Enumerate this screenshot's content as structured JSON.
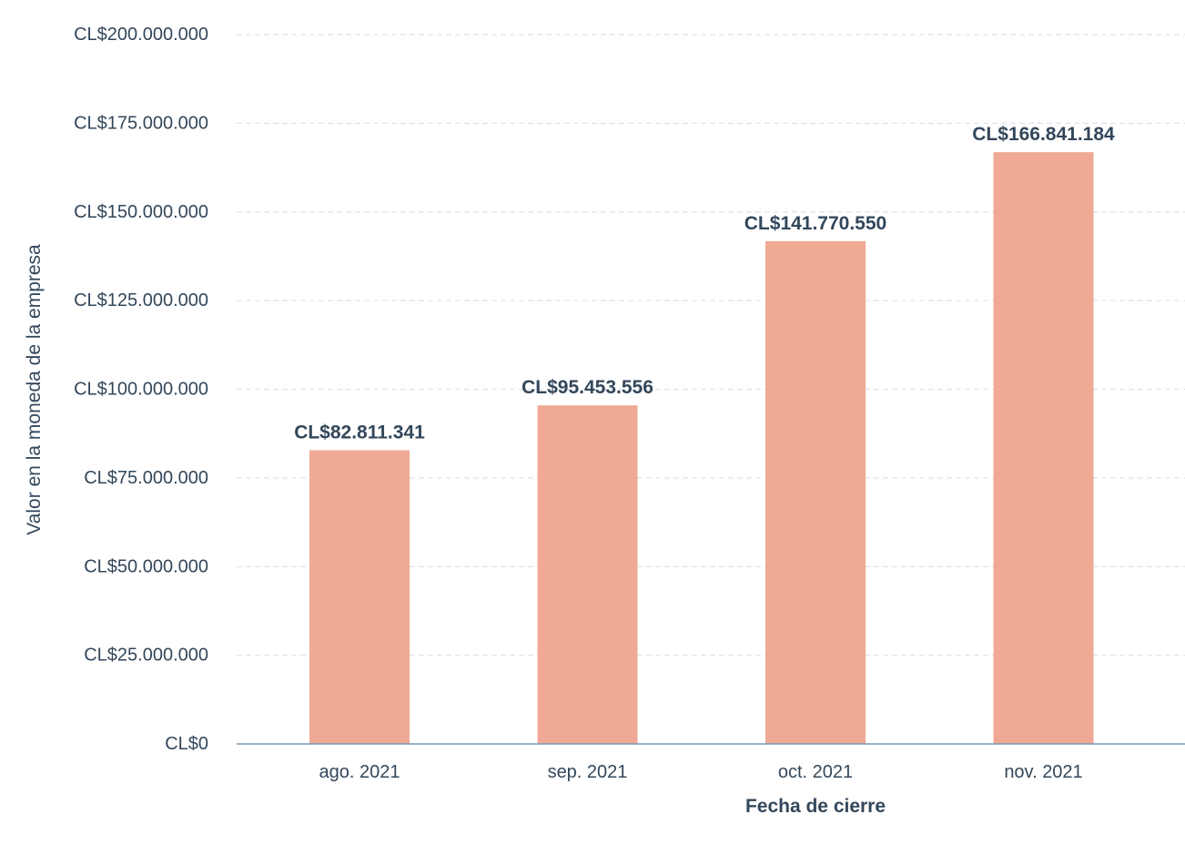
{
  "chart_data": {
    "type": "bar",
    "categories": [
      "ago. 2021",
      "sep. 2021",
      "oct. 2021",
      "nov. 2021"
    ],
    "values": [
      82811341,
      95453556,
      141770550,
      166841184
    ],
    "data_labels": [
      "CL$82.811.341",
      "CL$95.453.556",
      "CL$141.770.550",
      "CL$166.841.184"
    ],
    "xlabel": "Fecha de cierre",
    "ylabel": "Valor en la moneda de la empresa",
    "ylim": [
      0,
      200000000
    ],
    "y_ticks": [
      0,
      25000000,
      50000000,
      75000000,
      100000000,
      125000000,
      150000000,
      175000000,
      200000000
    ],
    "y_tick_labels": [
      "CL$0",
      "CL$25.000.000",
      "CL$50.000.000",
      "CL$75.000.000",
      "CL$100.000.000",
      "CL$125.000.000",
      "CL$150.000.000",
      "CL$175.000.000",
      "CL$200.000.000"
    ],
    "grid": true,
    "legend": "none",
    "colors": {
      "bar": "#f0a994",
      "text": "#33475b",
      "grid": "#dfe3eb",
      "axis": "#7c98b6"
    }
  }
}
